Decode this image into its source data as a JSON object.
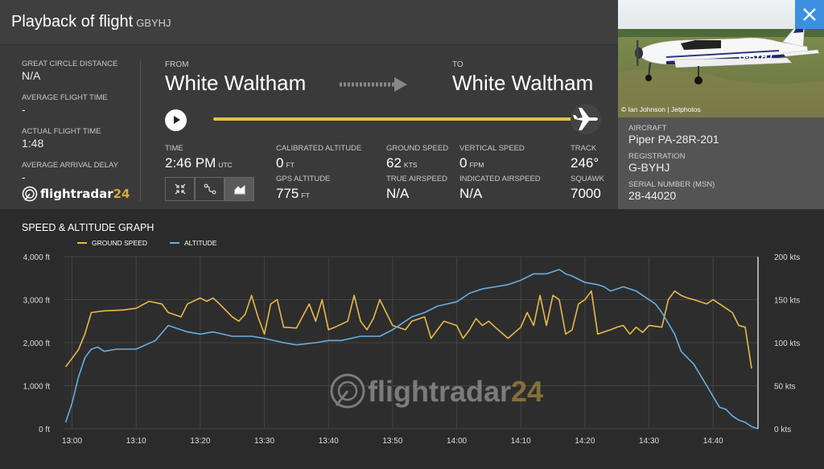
{
  "header": {
    "title": "Playback of flight",
    "callsign": "GBYHJ"
  },
  "stats": [
    {
      "label": "GREAT CIRCLE DISTANCE",
      "value": "N/A"
    },
    {
      "label": "AVERAGE FLIGHT TIME",
      "value": "-"
    },
    {
      "label": "ACTUAL FLIGHT TIME",
      "value": "1:48"
    },
    {
      "label": "AVERAGE ARRIVAL DELAY",
      "value": "-"
    }
  ],
  "logo": {
    "text": "flightradar",
    "num": "24"
  },
  "route": {
    "from_label": "FROM",
    "from": "White Waltham",
    "to_label": "TO",
    "to": "White Waltham"
  },
  "playback": {
    "progress": 1.0
  },
  "fields": {
    "time": {
      "label": "TIME",
      "value": "2:46 PM",
      "unit": "UTC"
    },
    "cal_alt": {
      "label": "CALIBRATED ALTITUDE",
      "value": "0",
      "unit": "FT"
    },
    "gps_alt": {
      "label": "GPS ALTITUDE",
      "value": "775",
      "unit": "FT"
    },
    "ground_speed": {
      "label": "GROUND SPEED",
      "value": "62",
      "unit": "KTS"
    },
    "true_airspeed": {
      "label": "TRUE AIRSPEED",
      "value": "N/A"
    },
    "vertical_speed": {
      "label": "VERTICAL SPEED",
      "value": "0",
      "unit": "FPM"
    },
    "indicated_airspeed": {
      "label": "INDICATED AIRSPEED",
      "value": "N/A"
    },
    "track": {
      "label": "TRACK",
      "value": "246°"
    },
    "squawk": {
      "label": "SQUAWK",
      "value": "7000"
    }
  },
  "view_buttons": [
    "collapse-icon",
    "route-icon",
    "graph-icon"
  ],
  "photo": {
    "credit": "© Ian Johnson | Jetphotos",
    "registration_marking": "G-BYHJ"
  },
  "aircraft": [
    {
      "label": "AIRCRAFT",
      "value": "Piper PA-28R-201"
    },
    {
      "label": "REGISTRATION",
      "value": "G-BYHJ"
    },
    {
      "label": "SERIAL NUMBER (MSN)",
      "value": "28-44020"
    }
  ],
  "colors": {
    "ground_speed": "#e9b949",
    "altitude": "#6aaee0",
    "progress": "#e9c04a",
    "close": "#3d8fe0"
  },
  "graph": {
    "title": "SPEED & ALTITUDE GRAPH"
  },
  "chart_data": {
    "type": "line",
    "title": "SPEED & ALTITUDE GRAPH",
    "x_ticks": [
      "13:00",
      "13:10",
      "13:20",
      "13:30",
      "13:40",
      "13:50",
      "14:00",
      "14:10",
      "14:20",
      "14:30",
      "14:40"
    ],
    "y_left_ticks": [
      "0 ft",
      "1,000 ft",
      "2,000 ft",
      "3,000 ft",
      "4,000 ft"
    ],
    "y_right_ticks": [
      "0 kts",
      "50 kts",
      "100 kts",
      "150 kts",
      "200 kts"
    ],
    "ylim_left": [
      0,
      4000
    ],
    "ylim_right": [
      0,
      200
    ],
    "xlim_minutes": [
      -1.2,
      107
    ],
    "grid": true,
    "legend_position": "top-left",
    "series": [
      {
        "name": "GROUND SPEED",
        "axis": "right",
        "x": [
          -1,
          0,
          1,
          2,
          3,
          5,
          8,
          10,
          12,
          14,
          15,
          17,
          18,
          20,
          21,
          22,
          23,
          25,
          26,
          27,
          28,
          29,
          30,
          31,
          32,
          33,
          35,
          37,
          38,
          39,
          40,
          41,
          43,
          44,
          45,
          46,
          47,
          48,
          50,
          52,
          53,
          55,
          56,
          57,
          58,
          60,
          61,
          62,
          63,
          64,
          65,
          66,
          68,
          70,
          71,
          72,
          73,
          74,
          75,
          76,
          77,
          78,
          79,
          80,
          81,
          82,
          84,
          85,
          86,
          87,
          88,
          89,
          90,
          92,
          93,
          94,
          95,
          96,
          97,
          99,
          100,
          101,
          102,
          103,
          104,
          105,
          106
        ],
        "y": [
          72,
          82,
          92,
          110,
          135,
          137,
          138,
          140,
          148,
          145,
          135,
          130,
          145,
          152,
          148,
          152,
          145,
          130,
          125,
          133,
          155,
          130,
          110,
          145,
          150,
          118,
          117,
          145,
          125,
          150,
          115,
          118,
          125,
          155,
          125,
          115,
          128,
          150,
          120,
          115,
          125,
          130,
          105,
          115,
          125,
          120,
          105,
          115,
          128,
          120,
          125,
          118,
          105,
          118,
          135,
          120,
          155,
          120,
          155,
          150,
          110,
          115,
          145,
          150,
          160,
          110,
          115,
          118,
          120,
          110,
          118,
          112,
          120,
          118,
          150,
          160,
          155,
          152,
          150,
          145,
          150,
          145,
          140,
          135,
          120,
          118,
          70
        ]
      },
      {
        "name": "ALTITUDE",
        "axis": "left",
        "x": [
          -1,
          0,
          1,
          2,
          3,
          4,
          5,
          7,
          10,
          13,
          15,
          18,
          20,
          22,
          25,
          28,
          30,
          33,
          35,
          38,
          40,
          42,
          45,
          48,
          50,
          53,
          55,
          57,
          60,
          62,
          64,
          66,
          68,
          70,
          72,
          74,
          75,
          76,
          77,
          78,
          80,
          82,
          83,
          84,
          85,
          86,
          87,
          88,
          89,
          90,
          91,
          92,
          93,
          94,
          95,
          97,
          99,
          100,
          101,
          102,
          103,
          104,
          105,
          106,
          107
        ],
        "y": [
          150,
          600,
          1200,
          1650,
          1850,
          1900,
          1800,
          1850,
          1850,
          2050,
          2400,
          2250,
          2200,
          2250,
          2150,
          2150,
          2100,
          2000,
          1950,
          2000,
          2050,
          2050,
          2150,
          2150,
          2300,
          2600,
          2700,
          2850,
          2950,
          3150,
          3250,
          3300,
          3350,
          3450,
          3600,
          3600,
          3650,
          3700,
          3600,
          3550,
          3400,
          3350,
          3300,
          3200,
          3250,
          3300,
          3250,
          3200,
          3100,
          3000,
          2900,
          2700,
          2450,
          2200,
          1800,
          1500,
          1000,
          750,
          500,
          450,
          300,
          200,
          150,
          50,
          0
        ]
      }
    ]
  }
}
